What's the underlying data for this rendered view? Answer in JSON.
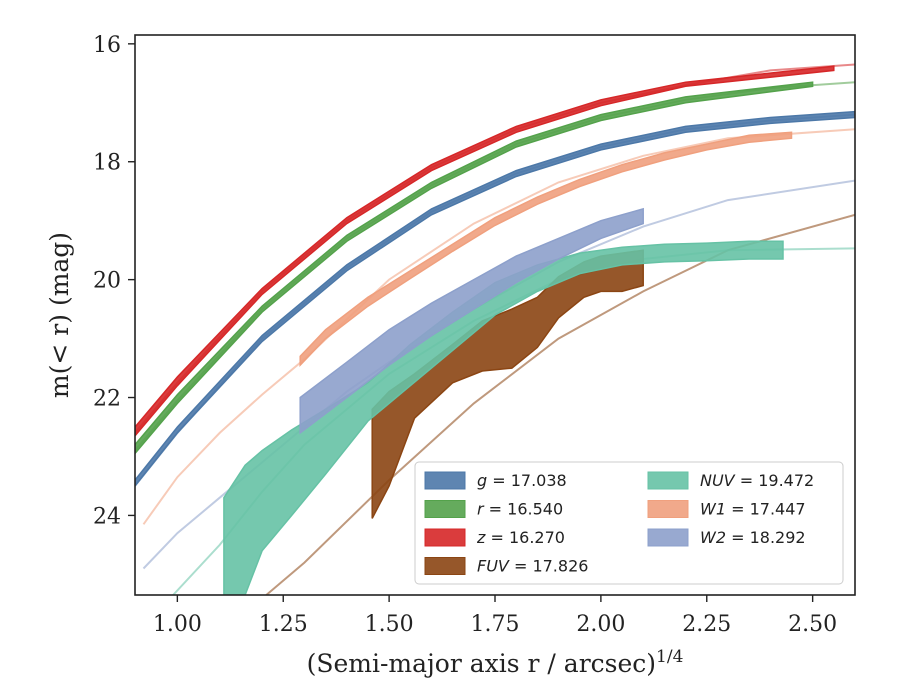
{
  "chart_data": {
    "type": "area",
    "xlabel": "(Semi-major axis r / arcsec)",
    "xlabel_superscript": "1/4",
    "ylabel": "m(< r) (mag)",
    "xlim": [
      0.9,
      2.6
    ],
    "ylim": [
      25.35,
      15.85
    ],
    "y_inverted": true,
    "grid": false,
    "legend_position": "lower-right",
    "x_ticks": [
      1.0,
      1.25,
      1.5,
      1.75,
      2.0,
      2.25,
      2.5
    ],
    "x_tick_labels": [
      "1.00",
      "1.25",
      "1.50",
      "1.75",
      "2.00",
      "2.25",
      "2.50"
    ],
    "y_ticks": [
      16,
      18,
      20,
      22,
      24
    ],
    "y_tick_labels": [
      "16",
      "18",
      "20",
      "22",
      "24"
    ],
    "series": [
      {
        "name": "g = 17.038",
        "legend_var": "g",
        "legend_value": "17.038",
        "color": "#4c78a8",
        "model_x": [
          0.9,
          1.0,
          1.2,
          1.4,
          1.6,
          1.8,
          2.0,
          2.2,
          2.4,
          2.6
        ],
        "model_y": [
          23.5,
          22.6,
          21.0,
          19.8,
          18.85,
          18.2,
          17.75,
          17.45,
          17.3,
          17.2
        ],
        "band_x": [
          0.9,
          1.0,
          1.2,
          1.4,
          1.6,
          1.8,
          2.0,
          2.2,
          2.4,
          2.6
        ],
        "band_upper": [
          23.4,
          22.5,
          20.95,
          19.75,
          18.8,
          18.15,
          17.7,
          17.4,
          17.25,
          17.15
        ],
        "band_lower": [
          23.5,
          22.6,
          21.05,
          19.85,
          18.9,
          18.25,
          17.8,
          17.5,
          17.35,
          17.25
        ]
      },
      {
        "name": "r = 16.540",
        "legend_var": "r",
        "legend_value": "16.540",
        "color": "#54a24b",
        "model_x": [
          0.9,
          1.0,
          1.2,
          1.4,
          1.6,
          1.8,
          2.0,
          2.2,
          2.4,
          2.6
        ],
        "model_y": [
          22.9,
          22.05,
          20.5,
          19.3,
          18.4,
          17.7,
          17.25,
          16.95,
          16.75,
          16.65
        ],
        "band_x": [
          0.9,
          1.0,
          1.2,
          1.4,
          1.6,
          1.8,
          2.0,
          2.2,
          2.5
        ],
        "band_upper": [
          22.8,
          21.95,
          20.45,
          19.25,
          18.35,
          17.65,
          17.2,
          16.9,
          16.65
        ],
        "band_lower": [
          22.95,
          22.1,
          20.55,
          19.35,
          18.45,
          17.75,
          17.3,
          17.0,
          16.72
        ]
      },
      {
        "name": "z = 16.270",
        "legend_var": "z",
        "legend_value": "16.270",
        "color": "#d62728",
        "model_x": [
          0.9,
          1.0,
          1.2,
          1.4,
          1.6,
          1.8,
          2.0,
          2.2,
          2.4,
          2.6
        ],
        "model_y": [
          22.6,
          21.75,
          20.2,
          19.0,
          18.1,
          17.45,
          17.0,
          16.7,
          16.45,
          16.35
        ],
        "band_x": [
          0.9,
          1.0,
          1.2,
          1.4,
          1.6,
          1.8,
          2.0,
          2.2,
          2.55
        ],
        "band_upper": [
          22.5,
          21.65,
          20.15,
          18.95,
          18.05,
          17.4,
          16.95,
          16.65,
          16.38
        ],
        "band_lower": [
          22.65,
          21.8,
          20.25,
          19.05,
          18.15,
          17.5,
          17.05,
          16.72,
          16.45
        ]
      },
      {
        "name": "FUV = 17.826",
        "legend_var": "FUV",
        "legend_value": "17.826",
        "color": "#8b4513",
        "model_x": [
          1.21,
          1.3,
          1.5,
          1.7,
          1.9,
          2.1,
          2.3,
          2.6
        ],
        "model_y": [
          25.35,
          24.8,
          23.4,
          22.1,
          21.0,
          20.2,
          19.5,
          18.9
        ],
        "band_x": [
          1.46,
          1.5,
          1.56,
          1.65,
          1.72,
          1.79,
          1.85,
          1.9,
          1.96,
          2.0,
          2.05,
          2.1
        ],
        "band_upper": [
          22.2,
          21.9,
          21.6,
          21.1,
          20.7,
          20.5,
          20.3,
          19.95,
          19.7,
          19.6,
          19.55,
          19.5
        ],
        "band_lower": [
          24.05,
          23.5,
          22.35,
          21.75,
          21.55,
          21.5,
          21.15,
          20.65,
          20.3,
          20.2,
          20.2,
          20.1
        ]
      },
      {
        "name": "NUV = 19.472",
        "legend_var": "NUV",
        "legend_value": "19.472",
        "color": "#66c2a5",
        "model_x": [
          0.99,
          1.1,
          1.2,
          1.3,
          1.5,
          1.7,
          1.9,
          2.1,
          2.3,
          2.6
        ],
        "model_y": [
          25.35,
          24.5,
          23.6,
          22.8,
          21.6,
          20.7,
          20.0,
          19.65,
          19.5,
          19.47
        ],
        "band_x": [
          1.11,
          1.16,
          1.2,
          1.27,
          1.35,
          1.45,
          1.55,
          1.65,
          1.75,
          1.85,
          1.95,
          2.05,
          2.15,
          2.25,
          2.35,
          2.43
        ],
        "band_upper": [
          23.7,
          23.15,
          22.9,
          22.55,
          22.2,
          21.75,
          21.1,
          20.55,
          20.05,
          19.75,
          19.55,
          19.45,
          19.4,
          19.38,
          19.35,
          19.35
        ],
        "band_lower": [
          25.35,
          25.35,
          24.6,
          24.0,
          23.3,
          22.4,
          21.8,
          21.2,
          20.6,
          20.2,
          19.9,
          19.75,
          19.7,
          19.68,
          19.65,
          19.65
        ]
      },
      {
        "name": "W1 = 17.447",
        "legend_var": "W1",
        "legend_value": "17.447",
        "color": "#f0a07e",
        "model_x": [
          0.92,
          1.0,
          1.1,
          1.2,
          1.3,
          1.5,
          1.7,
          1.9,
          2.1,
          2.3,
          2.6
        ],
        "model_y": [
          24.15,
          23.35,
          22.6,
          21.95,
          21.35,
          20.0,
          19.05,
          18.35,
          17.9,
          17.6,
          17.45
        ],
        "band_x": [
          1.29,
          1.35,
          1.45,
          1.55,
          1.65,
          1.75,
          1.85,
          1.95,
          2.05,
          2.15,
          2.25,
          2.35,
          2.45
        ],
        "band_upper": [
          21.3,
          20.85,
          20.3,
          19.85,
          19.4,
          18.95,
          18.6,
          18.3,
          18.05,
          17.85,
          17.7,
          17.55,
          17.5
        ],
        "band_lower": [
          21.45,
          21.0,
          20.45,
          19.98,
          19.52,
          19.08,
          18.72,
          18.42,
          18.17,
          17.97,
          17.8,
          17.67,
          17.6
        ]
      },
      {
        "name": "W2 = 18.292",
        "legend_var": "W2",
        "legend_value": "18.292",
        "color": "#8da0cb",
        "model_x": [
          0.92,
          1.0,
          1.1,
          1.2,
          1.3,
          1.4,
          1.5,
          1.7,
          1.9,
          2.1,
          2.3,
          2.6
        ],
        "model_y": [
          24.9,
          24.3,
          23.7,
          23.1,
          22.5,
          21.9,
          21.4,
          20.5,
          19.7,
          19.1,
          18.65,
          18.32
        ],
        "band_x": [
          1.29,
          1.4,
          1.5,
          1.6,
          1.7,
          1.8,
          1.9,
          2.0,
          2.1
        ],
        "band_upper": [
          22.0,
          21.4,
          20.85,
          20.4,
          20.0,
          19.6,
          19.3,
          19.0,
          18.8
        ],
        "band_lower": [
          22.6,
          22.0,
          21.45,
          20.95,
          20.5,
          20.05,
          19.65,
          19.3,
          19.05
        ]
      }
    ]
  }
}
